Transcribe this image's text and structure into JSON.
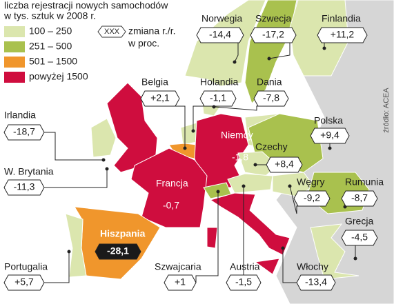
{
  "legend": {
    "title_lines": [
      "liczba rejestracji nowych samochodów",
      "w tys. sztuk w 2008 r."
    ],
    "items": [
      "100 – 250",
      "251 – 500",
      "501 – 1500",
      "powyżej 1500"
    ]
  },
  "key": {
    "sample": "XXX",
    "text_lines": [
      "zmiana r./r.",
      "w proc."
    ]
  },
  "source": "źródło: ACEA",
  "countries": [
    {
      "name": "Norwegia",
      "value": "-14,4"
    },
    {
      "name": "Szwecja",
      "value": "-17,2"
    },
    {
      "name": "Finlandia",
      "value": "+11,2"
    },
    {
      "name": "Belgia",
      "value": "+2,1"
    },
    {
      "name": "Holandia",
      "value": "-1,1"
    },
    {
      "name": "Dania",
      "value": "-7,8"
    },
    {
      "name": "Irlandia",
      "value": "-18,7"
    },
    {
      "name": "Niemcy",
      "value": "-1,8"
    },
    {
      "name": "Polska",
      "value": "+9,4"
    },
    {
      "name": "Czechy",
      "value": "+8,4"
    },
    {
      "name": "W. Brytania",
      "value": "-11,3"
    },
    {
      "name": "Francja",
      "value": "-0,7"
    },
    {
      "name": "Węgry",
      "value": "-9,2"
    },
    {
      "name": "Rumunia",
      "value": "-8,7"
    },
    {
      "name": "Grecja",
      "value": "-4,5"
    },
    {
      "name": "Hiszpania",
      "value": "-28,1"
    },
    {
      "name": "Portugalia",
      "value": "+5,7"
    },
    {
      "name": "Szwajcaria",
      "value": "+1"
    },
    {
      "name": "Austria",
      "value": "-1,5"
    },
    {
      "name": "Włochy",
      "value": "-13,4"
    }
  ]
}
